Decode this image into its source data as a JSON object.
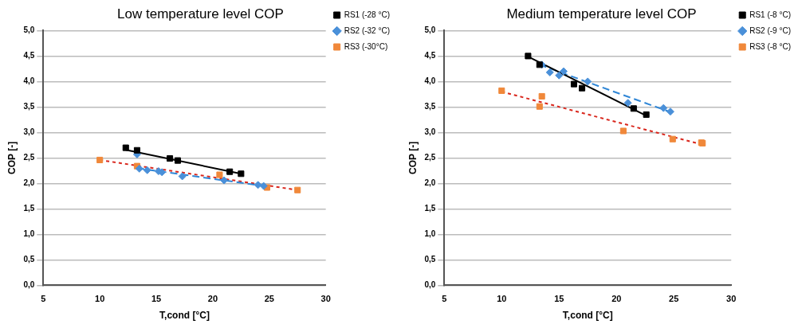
{
  "chart_data": [
    {
      "type": "scatter",
      "title": "Low temperature level COP",
      "xlabel": "T,cond [°C]",
      "ylabel": "COP [-]",
      "xlim": [
        5,
        30
      ],
      "xticks": [
        5,
        10,
        15,
        20,
        25,
        30
      ],
      "ylim": [
        0,
        5
      ],
      "yticks": [
        {
          "value": 0,
          "label": "0,0"
        },
        {
          "value": 0.5,
          "label": "0,5"
        },
        {
          "value": 1,
          "label": "1,0"
        },
        {
          "value": 1.5,
          "label": "1,5"
        },
        {
          "value": 2,
          "label": "2,0"
        },
        {
          "value": 2.5,
          "label": "2,5"
        },
        {
          "value": 3,
          "label": "3,0"
        },
        {
          "value": 3.5,
          "label": "3,5"
        },
        {
          "value": 4,
          "label": "4,0"
        },
        {
          "value": 4.5,
          "label": "4,5"
        },
        {
          "value": 5,
          "label": "5,0"
        }
      ],
      "grid": "y",
      "legend": "top right",
      "series": [
        {
          "name": "RS1 (-28 °C)",
          "color": "#000000",
          "marker": "square",
          "x": [
            12.3,
            13.3,
            16.2,
            16.9,
            21.5,
            22.5
          ],
          "values": [
            2.7,
            2.65,
            2.49,
            2.45,
            2.23,
            2.19
          ]
        },
        {
          "name": "RS2 (-32 °C)",
          "color": "#4a90d9",
          "marker": "diamond",
          "x": [
            13.3,
            13.5,
            14.2,
            15.2,
            15.5,
            17.3,
            21.0,
            24.0,
            24.5
          ],
          "values": [
            2.57,
            2.29,
            2.26,
            2.24,
            2.22,
            2.14,
            2.06,
            1.97,
            1.95
          ]
        },
        {
          "name": "RS3 (-30°C)",
          "color": "#f0883a",
          "marker": "square",
          "x": [
            10.0,
            13.3,
            20.6,
            24.8,
            27.5
          ],
          "values": [
            2.46,
            2.34,
            2.17,
            1.92,
            1.87
          ]
        },
        {
          "type": "line",
          "color": "#000000",
          "marker": "none",
          "line_style": "solid",
          "x": [
            12.3,
            22.5
          ],
          "values": [
            2.66,
            2.19
          ]
        },
        {
          "type": "line",
          "color": "#2f86d6",
          "marker": "none",
          "line_style": "dashed",
          "x": [
            13.3,
            24.5
          ],
          "values": [
            2.3,
            1.95
          ]
        },
        {
          "type": "line",
          "color": "#d9261c",
          "marker": "none",
          "line_style": "dotted",
          "x": [
            10.0,
            27.5
          ],
          "values": [
            2.46,
            1.87
          ]
        }
      ]
    },
    {
      "type": "scatter",
      "title": "Medium temperature level COP",
      "xlabel": "T,cond [°C]",
      "ylabel": "COP [-]",
      "xlim": [
        5,
        30
      ],
      "xticks": [
        5,
        10,
        15,
        20,
        25,
        30
      ],
      "ylim": [
        0,
        5
      ],
      "yticks": [
        {
          "value": 0,
          "label": "0,0"
        },
        {
          "value": 0.5,
          "label": "0,5"
        },
        {
          "value": 1,
          "label": "1,0"
        },
        {
          "value": 1.5,
          "label": "1,5"
        },
        {
          "value": 2,
          "label": "2,0"
        },
        {
          "value": 2.5,
          "label": "2,5"
        },
        {
          "value": 3,
          "label": "3,0"
        },
        {
          "value": 3.5,
          "label": "3,5"
        },
        {
          "value": 4,
          "label": "4,0"
        },
        {
          "value": 4.5,
          "label": "4,5"
        },
        {
          "value": 5,
          "label": "5,0"
        }
      ],
      "grid": "y",
      "legend": "top right",
      "series": [
        {
          "name": "RS1 (-8 °C)",
          "color": "#000000",
          "marker": "square",
          "x": [
            12.3,
            13.3,
            16.3,
            17.0,
            21.5,
            22.6
          ],
          "values": [
            4.5,
            4.33,
            3.95,
            3.87,
            3.47,
            3.35
          ]
        },
        {
          "name": "RS2 (-9 °C)",
          "color": "#4a90d9",
          "marker": "diamond",
          "x": [
            13.5,
            14.2,
            15.0,
            15.4,
            17.5,
            21.0,
            24.1,
            24.7
          ],
          "values": [
            4.33,
            4.18,
            4.12,
            4.2,
            4.0,
            3.58,
            3.48,
            3.41
          ]
        },
        {
          "name": "RS3 (-8 °C)",
          "color": "#f0883a",
          "marker": "square",
          "x": [
            10.0,
            13.3,
            13.5,
            20.6,
            24.9,
            27.5,
            27.4
          ],
          "values": [
            3.82,
            3.51,
            3.71,
            3.03,
            2.87,
            2.79,
            2.8
          ]
        },
        {
          "type": "line",
          "color": "#000000",
          "marker": "none",
          "line_style": "solid",
          "x": [
            12.3,
            22.6
          ],
          "values": [
            4.49,
            3.33
          ]
        },
        {
          "type": "line",
          "color": "#2f86d6",
          "marker": "none",
          "line_style": "dashed",
          "x": [
            13.3,
            24.7
          ],
          "values": [
            4.33,
            3.4
          ]
        },
        {
          "type": "line",
          "color": "#d9261c",
          "marker": "none",
          "line_style": "dotted",
          "x": [
            10.0,
            27.5
          ],
          "values": [
            3.8,
            2.76
          ]
        }
      ]
    }
  ]
}
